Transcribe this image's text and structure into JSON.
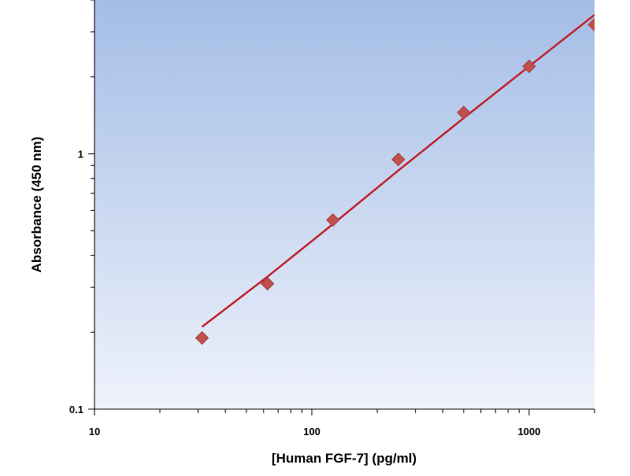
{
  "chart_data": {
    "type": "scatter",
    "xlabel": "[Human FGF-7]  (pg/ml)",
    "ylabel": "Absorbance (450 nm)",
    "x_scale": "log",
    "y_scale": "log",
    "xlim": [
      10,
      2000
    ],
    "ylim": [
      0.1,
      4
    ],
    "x_ticks": [
      {
        "value": 10,
        "label": "10"
      },
      {
        "value": 100,
        "label": "100"
      },
      {
        "value": 1000,
        "label": "1000"
      }
    ],
    "y_ticks": [
      {
        "value": 0.1,
        "label": "0.1"
      },
      {
        "value": 1,
        "label": "1"
      }
    ],
    "grid": false,
    "series": [
      {
        "marker": "diamond",
        "color": "#c0504d",
        "x": [
          31.25,
          62.5,
          125,
          250,
          500,
          1000,
          2000
        ],
        "y": [
          0.19,
          0.31,
          0.55,
          0.95,
          1.45,
          2.2,
          3.2
        ]
      }
    ],
    "fit_line": {
      "color": "#c0202a",
      "x_range": [
        31.25,
        2000
      ],
      "points": [
        [
          31.25,
          0.21
        ],
        [
          62.5,
          0.33
        ],
        [
          125,
          0.53
        ],
        [
          250,
          0.86
        ],
        [
          500,
          1.38
        ],
        [
          1000,
          2.2
        ],
        [
          2000,
          3.5
        ]
      ]
    },
    "background_gradient": [
      "#a4bde6",
      "#eef2fb"
    ]
  }
}
